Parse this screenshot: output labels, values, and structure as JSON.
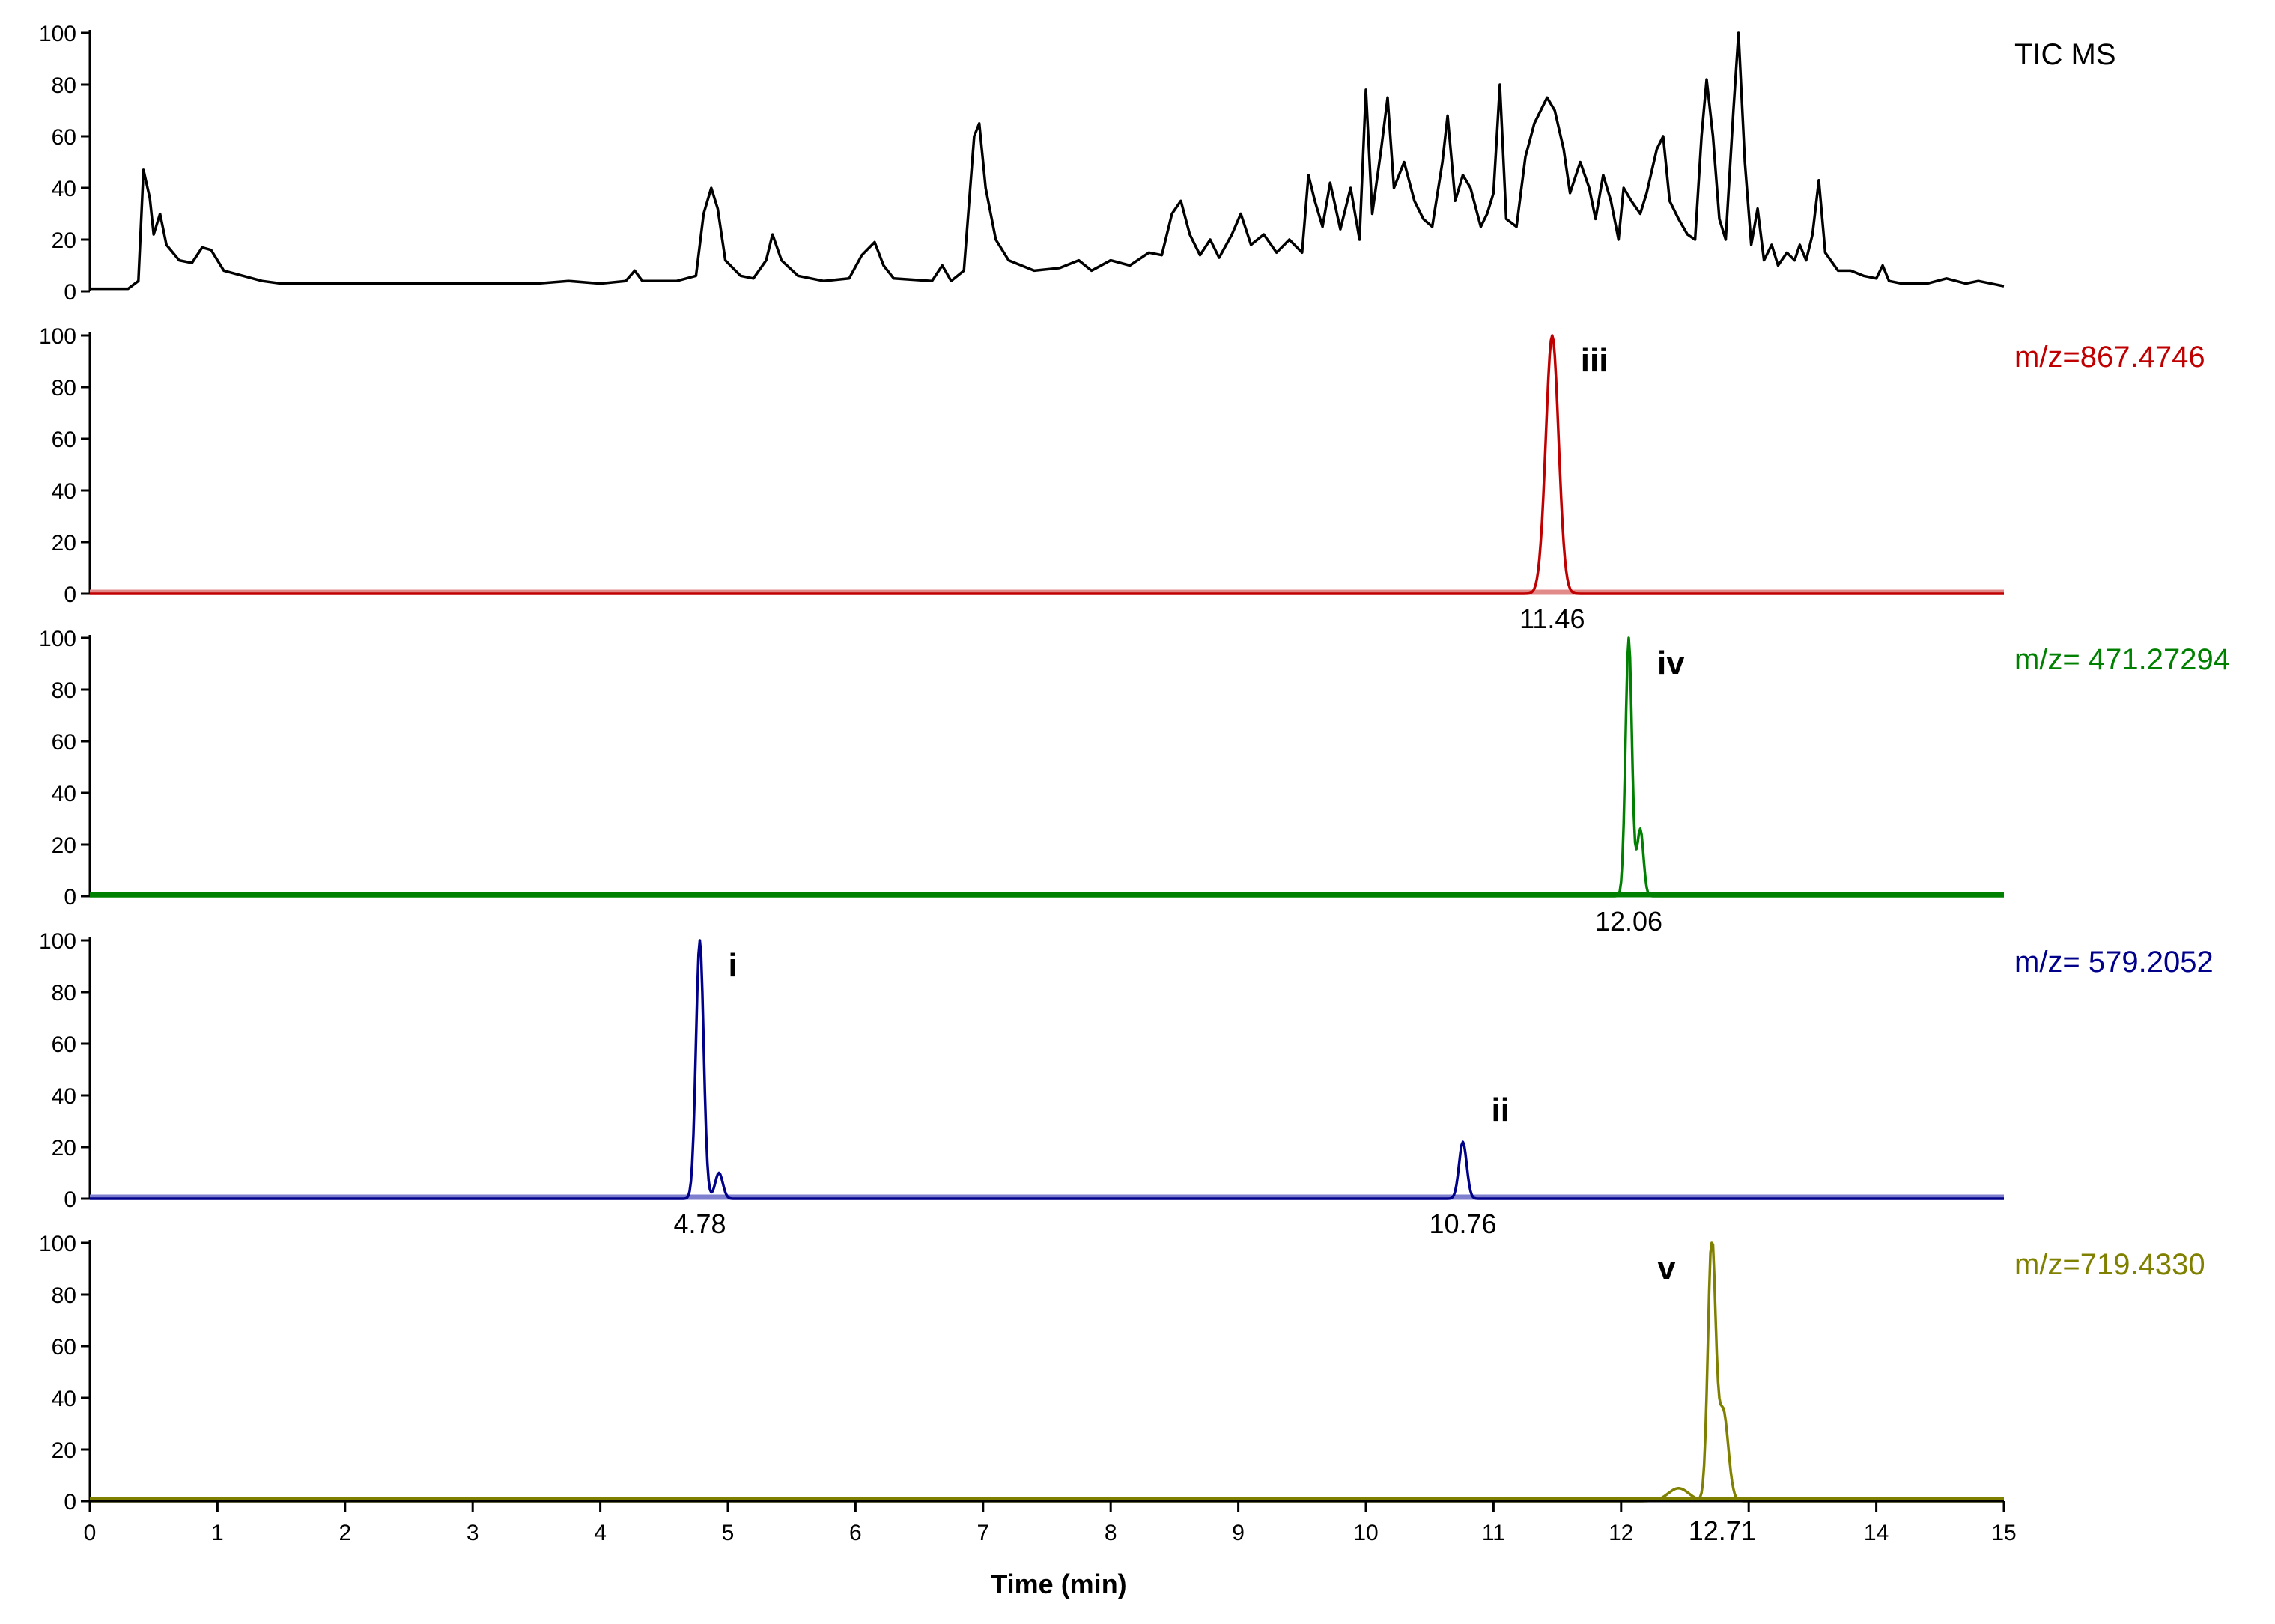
{
  "chart_data": {
    "type": "line",
    "xlabel": "Time (min)",
    "xlim": [
      0,
      15
    ],
    "xticks": [
      0,
      1,
      2,
      3,
      4,
      5,
      6,
      7,
      8,
      9,
      10,
      11,
      12,
      13,
      14,
      15
    ],
    "ylim": [
      0,
      100
    ],
    "yticks": [
      0,
      20,
      40,
      60,
      80,
      100
    ],
    "grid": false,
    "panels": [
      {
        "id": "tic",
        "label": "TIC  MS",
        "color": "#000000",
        "peaks": [],
        "series": [
          [
            0,
            1
          ],
          [
            0.3,
            1
          ],
          [
            0.38,
            4
          ],
          [
            0.42,
            47
          ],
          [
            0.47,
            36
          ],
          [
            0.5,
            22
          ],
          [
            0.55,
            30
          ],
          [
            0.6,
            18
          ],
          [
            0.7,
            12
          ],
          [
            0.8,
            11
          ],
          [
            0.88,
            17
          ],
          [
            0.95,
            16
          ],
          [
            1.05,
            8
          ],
          [
            1.2,
            6
          ],
          [
            1.35,
            4
          ],
          [
            1.5,
            3
          ],
          [
            2,
            3
          ],
          [
            2.5,
            3
          ],
          [
            3,
            3
          ],
          [
            3.5,
            3
          ],
          [
            3.75,
            4
          ],
          [
            4,
            3
          ],
          [
            4.2,
            4
          ],
          [
            4.27,
            8
          ],
          [
            4.33,
            4
          ],
          [
            4.6,
            4
          ],
          [
            4.75,
            6
          ],
          [
            4.81,
            30
          ],
          [
            4.87,
            40
          ],
          [
            4.92,
            32
          ],
          [
            4.98,
            12
          ],
          [
            5.1,
            6
          ],
          [
            5.2,
            5
          ],
          [
            5.3,
            12
          ],
          [
            5.35,
            22
          ],
          [
            5.42,
            12
          ],
          [
            5.55,
            6
          ],
          [
            5.75,
            4
          ],
          [
            5.95,
            5
          ],
          [
            6.05,
            14
          ],
          [
            6.15,
            19
          ],
          [
            6.22,
            10
          ],
          [
            6.3,
            5
          ],
          [
            6.6,
            4
          ],
          [
            6.68,
            10
          ],
          [
            6.75,
            4
          ],
          [
            6.85,
            8
          ],
          [
            6.93,
            60
          ],
          [
            6.97,
            65
          ],
          [
            7.02,
            40
          ],
          [
            7.1,
            20
          ],
          [
            7.2,
            12
          ],
          [
            7.4,
            8
          ],
          [
            7.6,
            9
          ],
          [
            7.75,
            12
          ],
          [
            7.85,
            8
          ],
          [
            8.0,
            12
          ],
          [
            8.15,
            10
          ],
          [
            8.3,
            15
          ],
          [
            8.4,
            14
          ],
          [
            8.48,
            30
          ],
          [
            8.55,
            35
          ],
          [
            8.62,
            22
          ],
          [
            8.7,
            14
          ],
          [
            8.78,
            20
          ],
          [
            8.85,
            13
          ],
          [
            8.95,
            22
          ],
          [
            9.02,
            30
          ],
          [
            9.1,
            18
          ],
          [
            9.2,
            22
          ],
          [
            9.3,
            15
          ],
          [
            9.4,
            20
          ],
          [
            9.5,
            15
          ],
          [
            9.55,
            45
          ],
          [
            9.6,
            35
          ],
          [
            9.66,
            25
          ],
          [
            9.72,
            42
          ],
          [
            9.8,
            24
          ],
          [
            9.88,
            40
          ],
          [
            9.95,
            20
          ],
          [
            10.0,
            78
          ],
          [
            10.05,
            30
          ],
          [
            10.12,
            55
          ],
          [
            10.17,
            75
          ],
          [
            10.22,
            40
          ],
          [
            10.3,
            50
          ],
          [
            10.38,
            35
          ],
          [
            10.45,
            28
          ],
          [
            10.52,
            25
          ],
          [
            10.6,
            50
          ],
          [
            10.64,
            68
          ],
          [
            10.7,
            35
          ],
          [
            10.76,
            45
          ],
          [
            10.82,
            40
          ],
          [
            10.9,
            25
          ],
          [
            10.95,
            30
          ],
          [
            11.0,
            38
          ],
          [
            11.05,
            80
          ],
          [
            11.1,
            28
          ],
          [
            11.18,
            25
          ],
          [
            11.25,
            52
          ],
          [
            11.32,
            65
          ],
          [
            11.42,
            75
          ],
          [
            11.48,
            70
          ],
          [
            11.55,
            55
          ],
          [
            11.6,
            38
          ],
          [
            11.68,
            50
          ],
          [
            11.75,
            40
          ],
          [
            11.8,
            28
          ],
          [
            11.86,
            45
          ],
          [
            11.92,
            35
          ],
          [
            11.98,
            20
          ],
          [
            12.02,
            40
          ],
          [
            12.08,
            35
          ],
          [
            12.15,
            30
          ],
          [
            12.2,
            38
          ],
          [
            12.28,
            55
          ],
          [
            12.33,
            60
          ],
          [
            12.38,
            35
          ],
          [
            12.45,
            28
          ],
          [
            12.52,
            22
          ],
          [
            12.58,
            20
          ],
          [
            12.63,
            60
          ],
          [
            12.67,
            82
          ],
          [
            12.72,
            60
          ],
          [
            12.77,
            28
          ],
          [
            12.82,
            20
          ],
          [
            12.88,
            70
          ],
          [
            12.92,
            100
          ],
          [
            12.97,
            50
          ],
          [
            13.02,
            18
          ],
          [
            13.07,
            32
          ],
          [
            13.12,
            12
          ],
          [
            13.18,
            18
          ],
          [
            13.23,
            10
          ],
          [
            13.3,
            15
          ],
          [
            13.36,
            12
          ],
          [
            13.4,
            18
          ],
          [
            13.45,
            12
          ],
          [
            13.5,
            22
          ],
          [
            13.55,
            43
          ],
          [
            13.6,
            15
          ],
          [
            13.7,
            8
          ],
          [
            13.8,
            8
          ],
          [
            13.9,
            6
          ],
          [
            14.0,
            5
          ],
          [
            14.05,
            10
          ],
          [
            14.1,
            4
          ],
          [
            14.2,
            3
          ],
          [
            14.4,
            3
          ],
          [
            14.55,
            5
          ],
          [
            14.7,
            3
          ],
          [
            14.8,
            4
          ],
          [
            15,
            2
          ]
        ]
      },
      {
        "id": "ion-867",
        "label": "m/z=867.4746",
        "color": "#c00000",
        "baseline_color": "#e08a8a",
        "peaks": [
          {
            "rt": 11.46,
            "rt_label": "11.46",
            "id": "iii",
            "height": 100,
            "width": 0.05
          }
        ],
        "series": []
      },
      {
        "id": "ion-471",
        "label": "m/z= 471.27294",
        "color": "#008000",
        "baseline_color": "#008000",
        "peaks": [
          {
            "rt": 12.06,
            "rt_label": "12.06",
            "id": "iv",
            "height": 100,
            "width": 0.025
          },
          {
            "rt": 12.15,
            "height": 26,
            "width": 0.025
          }
        ],
        "series": []
      },
      {
        "id": "ion-579",
        "label": "m/z= 579.2052",
        "color": "#00008b",
        "baseline_color": "#7f7fd0",
        "peaks": [
          {
            "rt": 4.78,
            "rt_label": "4.78",
            "id": "i",
            "height": 100,
            "width": 0.03
          },
          {
            "rt": 4.93,
            "height": 10,
            "width": 0.03
          },
          {
            "rt": 10.76,
            "rt_label": "10.76",
            "id": "ii",
            "height": 22,
            "width": 0.03
          }
        ],
        "series": []
      },
      {
        "id": "ion-719",
        "label": "m/z=719.4330",
        "color": "#808000",
        "baseline_color": "#808000",
        "peaks": [
          {
            "rt": 12.71,
            "rt_label": "12.71",
            "id": "v",
            "height": 100,
            "width": 0.03
          },
          {
            "rt": 12.8,
            "height": 35,
            "width": 0.04
          },
          {
            "rt": 12.45,
            "height": 5,
            "width": 0.08
          }
        ],
        "series": []
      }
    ]
  }
}
